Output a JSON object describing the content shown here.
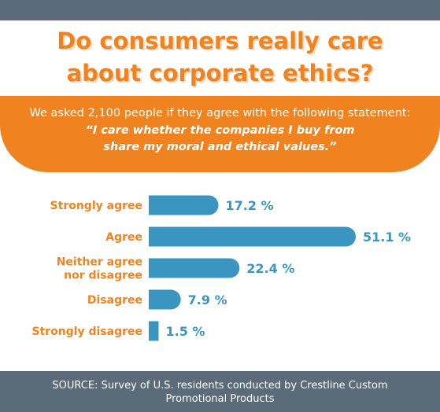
{
  "title_line1": "Do consumers really care",
  "title_line2": "about corporate ethics?",
  "banner": {
    "intro": "We asked 2,100 people if they agree with the following statement:",
    "quote": "“I care whether the companies I buy from share my moral and ethical values.”"
  },
  "footer": {
    "source": "SOURCE: Survey of U.S. residents conducted by Crestline Custom Promotional Products"
  },
  "colors": {
    "accent": "#f0831f",
    "bar": "#3a95c1",
    "frame": "#5b6b7a"
  },
  "chart_data": {
    "type": "bar",
    "orientation": "horizontal",
    "categories": [
      [
        "Strongly agree"
      ],
      [
        "Agree"
      ],
      [
        "Neither agree",
        "nor disagree"
      ],
      [
        "Disagree"
      ],
      [
        "Strongly disagree"
      ]
    ],
    "values": [
      17.2,
      51.1,
      22.4,
      7.9,
      1.5
    ],
    "value_labels": [
      "17.2 %",
      "51.1 %",
      "22.4 %",
      "7.9 %",
      "1.5 %"
    ],
    "xlim": [
      0,
      51.1
    ],
    "grid": false,
    "legend": "none"
  }
}
